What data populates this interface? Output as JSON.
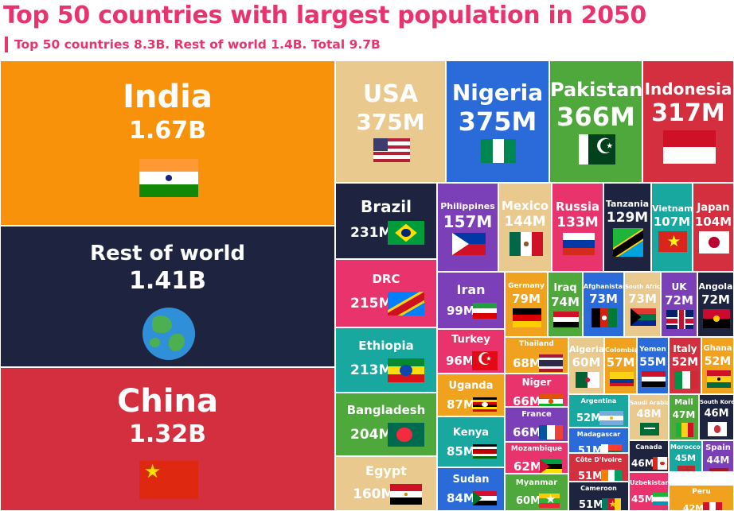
{
  "title": "Top 50 countries with largest population in 2050",
  "subtitle": "Top 50 countries 8.3B. Rest of world 1.4B. Total 9.7B",
  "chart_data": {
    "type": "treemap",
    "title": "Top 50 countries with largest population in 2050",
    "subtitle": "Top 50 countries 8.3B. Rest of world 1.4B. Total 9.7B",
    "unit": "population",
    "items": [
      {
        "name": "India",
        "label": "1.67B",
        "value": 1670000000,
        "color": "#f7920a"
      },
      {
        "name": "Rest of world",
        "label": "1.41B",
        "value": 1410000000,
        "color": "#1e2340"
      },
      {
        "name": "China",
        "label": "1.32B",
        "value": 1320000000,
        "color": "#d42f3f"
      },
      {
        "name": "USA",
        "label": "375M",
        "value": 375000000,
        "color": "#e9c98e"
      },
      {
        "name": "Nigeria",
        "label": "375M",
        "value": 375000000,
        "color": "#2a6bd9"
      },
      {
        "name": "Pakistan",
        "label": "366M",
        "value": 366000000,
        "color": "#4ea83c"
      },
      {
        "name": "Indonesia",
        "label": "317M",
        "value": 317000000,
        "color": "#d42f3f"
      },
      {
        "name": "Brazil",
        "label": "231M",
        "value": 231000000,
        "color": "#1e2340"
      },
      {
        "name": "Philippines",
        "label": "157M",
        "value": 157000000,
        "color": "#7b3fb8"
      },
      {
        "name": "Mexico",
        "label": "144M",
        "value": 144000000,
        "color": "#e9c98e"
      },
      {
        "name": "Russia",
        "label": "133M",
        "value": 133000000,
        "color": "#e8336d"
      },
      {
        "name": "Tanzania",
        "label": "129M",
        "value": 129000000,
        "color": "#1e2340"
      },
      {
        "name": "Vietnam",
        "label": "107M",
        "value": 107000000,
        "color": "#19a8a0"
      },
      {
        "name": "Japan",
        "label": "104M",
        "value": 104000000,
        "color": "#d42f3f"
      },
      {
        "name": "DRC",
        "label": "215M",
        "value": 215000000,
        "color": "#e8336d"
      },
      {
        "name": "Ethiopia",
        "label": "213M",
        "value": 213000000,
        "color": "#19a8a0"
      },
      {
        "name": "Bangladesh",
        "label": "204M",
        "value": 204000000,
        "color": "#4ea83c"
      },
      {
        "name": "Egypt",
        "label": "160M",
        "value": 160000000,
        "color": "#e9c98e"
      },
      {
        "name": "Iran",
        "label": "99M",
        "value": 99000000,
        "color": "#7b3fb8"
      },
      {
        "name": "Germany",
        "label": "79M",
        "value": 79000000,
        "color": "#f0a21e"
      },
      {
        "name": "Iraq",
        "label": "74M",
        "value": 74000000,
        "color": "#4ea83c"
      },
      {
        "name": "Afghanistan",
        "label": "73M",
        "value": 73000000,
        "color": "#2a6bd9"
      },
      {
        "name": "South Africa",
        "label": "73M",
        "value": 73000000,
        "color": "#e9c98e"
      },
      {
        "name": "UK",
        "label": "72M",
        "value": 72000000,
        "color": "#7b3fb8"
      },
      {
        "name": "Angola",
        "label": "72M",
        "value": 72000000,
        "color": "#1e2340"
      },
      {
        "name": "Turkey",
        "label": "96M",
        "value": 96000000,
        "color": "#e8336d"
      },
      {
        "name": "Thailand",
        "label": "68M",
        "value": 68000000,
        "color": "#f0a21e"
      },
      {
        "name": "Algeria",
        "label": "60M",
        "value": 60000000,
        "color": "#e9c98e"
      },
      {
        "name": "Colombia",
        "label": "57M",
        "value": 57000000,
        "color": "#f0a21e"
      },
      {
        "name": "Yemen",
        "label": "55M",
        "value": 55000000,
        "color": "#2a6bd9"
      },
      {
        "name": "Italy",
        "label": "52M",
        "value": 52000000,
        "color": "#d42f3f"
      },
      {
        "name": "Ghana",
        "label": "52M",
        "value": 52000000,
        "color": "#f0a21e"
      },
      {
        "name": "Uganda",
        "label": "87M",
        "value": 87000000,
        "color": "#f0a21e"
      },
      {
        "name": "Niger",
        "label": "66M",
        "value": 66000000,
        "color": "#e8336d"
      },
      {
        "name": "Argentina",
        "label": "52M",
        "value": 52000000,
        "color": "#19a8a0"
      },
      {
        "name": "Saudi Arabia",
        "label": "48M",
        "value": 48000000,
        "color": "#e9c98e"
      },
      {
        "name": "Mali",
        "label": "47M",
        "value": 47000000,
        "color": "#4ea83c"
      },
      {
        "name": "South Korea",
        "label": "46M",
        "value": 46000000,
        "color": "#1e2340"
      },
      {
        "name": "Kenya",
        "label": "85M",
        "value": 85000000,
        "color": "#19a8a0"
      },
      {
        "name": "France",
        "label": "66M",
        "value": 66000000,
        "color": "#7b3fb8"
      },
      {
        "name": "Madagascar",
        "label": "51M",
        "value": 51000000,
        "color": "#2a6bd9"
      },
      {
        "name": "Canada",
        "label": "46M",
        "value": 46000000,
        "color": "#1e2340"
      },
      {
        "name": "Morocco",
        "label": "45M",
        "value": 45000000,
        "color": "#19a8a0"
      },
      {
        "name": "Spain",
        "label": "44M",
        "value": 44000000,
        "color": "#7b3fb8"
      },
      {
        "name": "Mozambique",
        "label": "62M",
        "value": 62000000,
        "color": "#e8336d"
      },
      {
        "name": "Côte D'Ivoire",
        "label": "51M",
        "value": 51000000,
        "color": "#d42f3f"
      },
      {
        "name": "Sudan",
        "label": "84M",
        "value": 84000000,
        "color": "#2a6bd9"
      },
      {
        "name": "Myanmar",
        "label": "60M",
        "value": 60000000,
        "color": "#4ea83c"
      },
      {
        "name": "Cameroon",
        "label": "51M",
        "value": 51000000,
        "color": "#1e2340"
      },
      {
        "name": "Uzbekistan",
        "label": "45M",
        "value": 45000000,
        "color": "#e8336d"
      },
      {
        "name": "Peru",
        "label": "42M",
        "value": 42000000,
        "color": "#f0a21e"
      }
    ]
  }
}
